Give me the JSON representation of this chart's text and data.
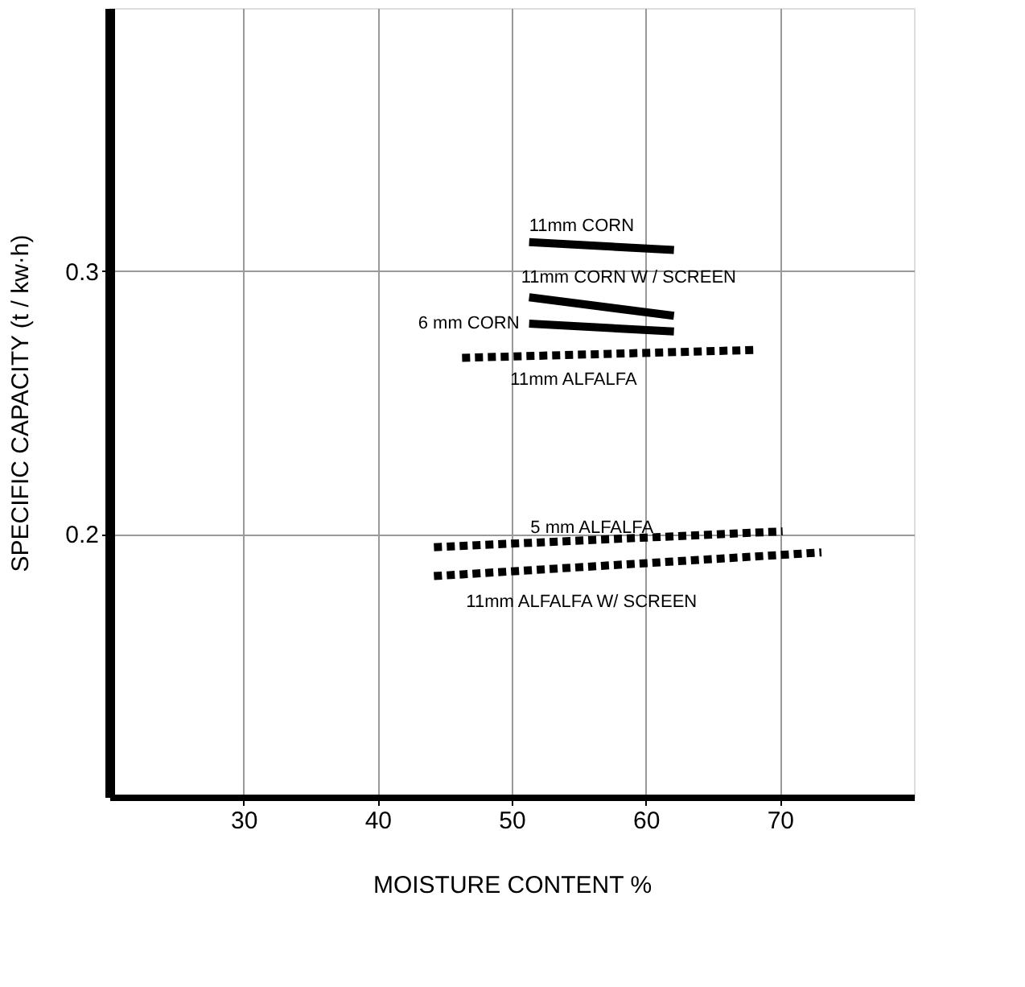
{
  "chart_data": {
    "type": "line",
    "xlabel": "MOISTURE  CONTENT   %",
    "ylabel": "SPECIFIC  CAPACITY  (t / kw·h)",
    "xlim": [
      20,
      80
    ],
    "ylim": [
      0.1,
      0.4
    ],
    "xticks": [
      30,
      40,
      50,
      60,
      70
    ],
    "yticks": [
      0.2,
      0.3
    ],
    "grid": true,
    "series": [
      {
        "name": "11mm  CORN",
        "color": "#000000",
        "line_style": "solid",
        "x": [
          51.3,
          62.1
        ],
        "values": [
          0.311,
          0.308
        ]
      },
      {
        "name": "11mm  CORN  W / SCREEN",
        "color": "#000000",
        "line_style": "solid",
        "x": [
          51.3,
          62.1
        ],
        "values": [
          0.29,
          0.283
        ]
      },
      {
        "name": "6 mm  CORN",
        "color": "#000000",
        "line_style": "solid",
        "x": [
          51.3,
          62.1
        ],
        "values": [
          0.28,
          0.277
        ]
      },
      {
        "name": "11mm  ALFALFA",
        "color": "#000000",
        "line_style": "dashed",
        "x": [
          46.3,
          68.2
        ],
        "values": [
          0.267,
          0.27
        ]
      },
      {
        "name": "5 mm  ALFALFA",
        "color": "#000000",
        "line_style": "dashed",
        "x": [
          44.2,
          70.2
        ],
        "values": [
          0.195,
          0.201
        ]
      },
      {
        "name": "11mm  ALFALFA  W/ SCREEN",
        "color": "#000000",
        "line_style": "dashed",
        "x": [
          44.2,
          73.1
        ],
        "values": [
          0.184,
          0.193
        ]
      }
    ]
  }
}
